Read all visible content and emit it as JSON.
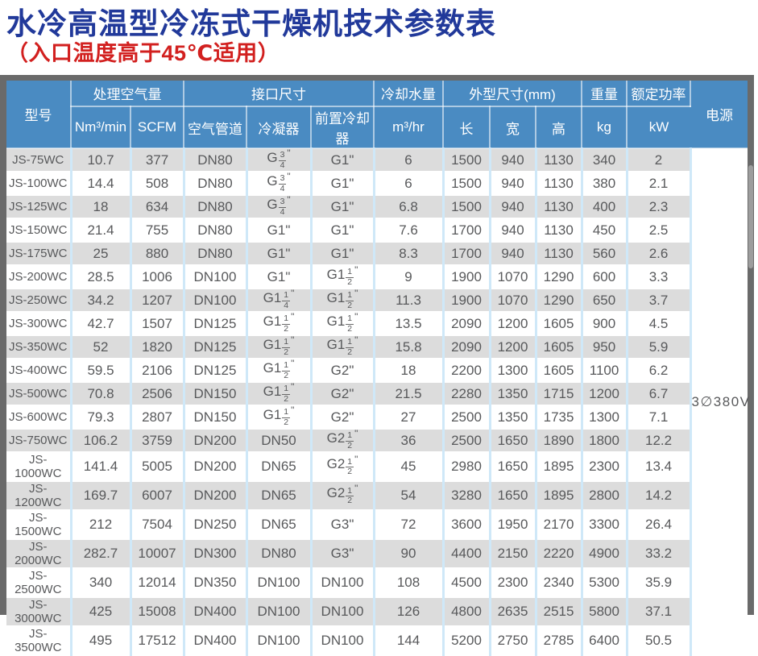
{
  "page": {
    "title": "水冷高温型冷冻式干燥机技术参数表",
    "subtitle": "（入口温度高于45℃适用）"
  },
  "colors": {
    "title_blue": "#21399a",
    "subtitle_red": "#d2201f",
    "header_blue": "#4a8bc2",
    "row_stripe": "#dcdcdc",
    "grid_blue": "#cfe8f8",
    "frame_gray": "#6a6a6a",
    "body_text": "#58595b"
  },
  "table": {
    "header": {
      "model": "型号",
      "air_volume_group": "处理空气量",
      "air_volume_units": [
        "Nm³/min",
        "SCFM"
      ],
      "connection_group": "接口尺寸",
      "connection_cols": [
        "空气管道",
        "冷凝器",
        "前置冷却器"
      ],
      "cooling_water_group": "冷却水量",
      "cooling_water_unit": "m³/hr",
      "dimensions_group": "外型尺寸(mm)",
      "dimension_cols": [
        "长",
        "宽",
        "高"
      ],
      "weight_group": "重量",
      "weight_unit": "kg",
      "power_group": "额定功率",
      "power_unit": "kW",
      "supply": "电源"
    },
    "power_supply": "3∅380V",
    "rows": [
      [
        "JS-75WC",
        "10.7",
        "377",
        "DN80",
        "G 3/4\"",
        "G1\"",
        "6",
        "1500",
        "940",
        "1130",
        "340",
        "2"
      ],
      [
        "JS-100WC",
        "14.4",
        "508",
        "DN80",
        "G 3/4\"",
        "G1\"",
        "6",
        "1500",
        "940",
        "1130",
        "380",
        "2.1"
      ],
      [
        "JS-125WC",
        "18",
        "634",
        "DN80",
        "G 3/4\"",
        "G1\"",
        "6.8",
        "1500",
        "940",
        "1130",
        "400",
        "2.3"
      ],
      [
        "JS-150WC",
        "21.4",
        "755",
        "DN80",
        "G1\"",
        "G1\"",
        "7.6",
        "1700",
        "940",
        "1130",
        "450",
        "2.5"
      ],
      [
        "JS-175WC",
        "25",
        "880",
        "DN80",
        "G1\"",
        "G1\"",
        "8.3",
        "1700",
        "940",
        "1130",
        "560",
        "2.6"
      ],
      [
        "JS-200WC",
        "28.5",
        "1006",
        "DN100",
        "G1\"",
        "G1 1/2\"",
        "9",
        "1900",
        "1070",
        "1290",
        "600",
        "3.3"
      ],
      [
        "JS-250WC",
        "34.2",
        "1207",
        "DN100",
        "G1 1/4\"",
        "G1 1/2\"",
        "11.3",
        "1900",
        "1070",
        "1290",
        "650",
        "3.7"
      ],
      [
        "JS-300WC",
        "42.7",
        "1507",
        "DN125",
        "G1 1/2\"",
        "G1 1/2\"",
        "13.5",
        "2090",
        "1200",
        "1605",
        "900",
        "4.5"
      ],
      [
        "JS-350WC",
        "52",
        "1820",
        "DN125",
        "G1 1/2\"",
        "G1 1/2\"",
        "15.8",
        "2090",
        "1200",
        "1605",
        "950",
        "5.9"
      ],
      [
        "JS-400WC",
        "59.5",
        "2106",
        "DN125",
        "G1 1/2\"",
        "G2\"",
        "18",
        "2200",
        "1300",
        "1605",
        "1100",
        "6.2"
      ],
      [
        "JS-500WC",
        "70.8",
        "2506",
        "DN150",
        "G1 1/2\"",
        "G2\"",
        "21.5",
        "2280",
        "1350",
        "1715",
        "1200",
        "6.7"
      ],
      [
        "JS-600WC",
        "79.3",
        "2807",
        "DN150",
        "G1 1/2\"",
        "G2\"",
        "27",
        "2500",
        "1350",
        "1735",
        "1300",
        "7.1"
      ],
      [
        "JS-750WC",
        "106.2",
        "3759",
        "DN200",
        "DN50",
        "G2 1/2\"",
        "36",
        "2500",
        "1650",
        "1890",
        "1800",
        "12.2"
      ],
      [
        "JS-1000WC",
        "141.4",
        "5005",
        "DN200",
        "DN65",
        "G2 1/2\"",
        "45",
        "2980",
        "1650",
        "1895",
        "2300",
        "13.4"
      ],
      [
        "JS-1200WC",
        "169.7",
        "6007",
        "DN200",
        "DN65",
        "G2 1/2\"",
        "54",
        "3280",
        "1650",
        "1895",
        "2800",
        "14.2"
      ],
      [
        "JS-1500WC",
        "212",
        "7504",
        "DN250",
        "DN65",
        "G3\"",
        "72",
        "3600",
        "1950",
        "2170",
        "3300",
        "26.4"
      ],
      [
        "JS-2000WC",
        "282.7",
        "10007",
        "DN300",
        "DN80",
        "G3\"",
        "90",
        "4400",
        "2150",
        "2220",
        "4900",
        "33.2"
      ],
      [
        "JS-2500WC",
        "340",
        "12014",
        "DN350",
        "DN100",
        "DN100",
        "108",
        "4500",
        "2300",
        "2340",
        "5300",
        "35.9"
      ],
      [
        "JS-3000WC",
        "425",
        "15008",
        "DN400",
        "DN100",
        "DN100",
        "126",
        "4800",
        "2635",
        "2515",
        "5800",
        "37.1"
      ],
      [
        "JS-3500WC",
        "495",
        "17512",
        "DN400",
        "DN100",
        "DN100",
        "144",
        "5200",
        "2750",
        "2785",
        "6400",
        "50.5"
      ]
    ]
  }
}
